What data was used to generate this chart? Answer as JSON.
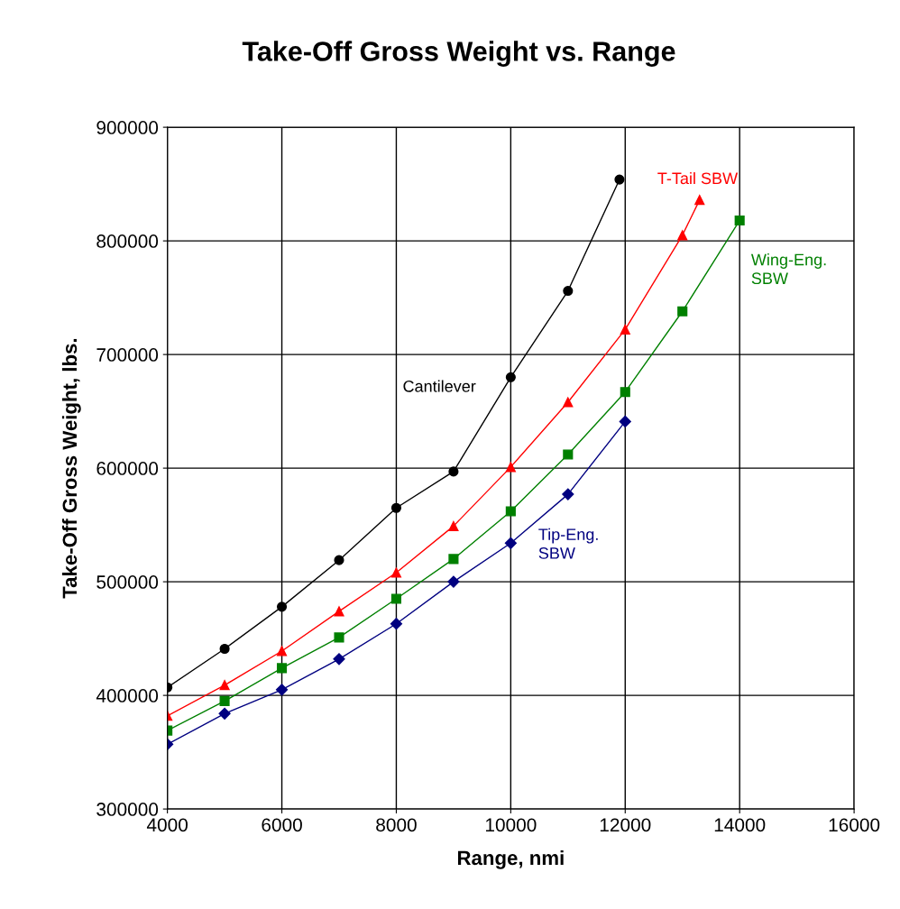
{
  "chart_data": {
    "type": "line",
    "title": "Take-Off Gross Weight vs. Range",
    "xlabel": "Range, nmi",
    "ylabel": "Take-Off Gross Weight, lbs.",
    "xlim": [
      4000,
      16000
    ],
    "xticks": [
      4000,
      6000,
      8000,
      10000,
      12000,
      14000,
      16000
    ],
    "ylim": [
      300000,
      900000
    ],
    "yticks": [
      300000,
      400000,
      500000,
      600000,
      700000,
      800000,
      900000
    ],
    "grid": true,
    "legend": false,
    "line_style": "solid",
    "series": [
      {
        "name": "Cantilever",
        "color": "#000000",
        "marker": "circle",
        "x": [
          4000,
          5000,
          6000,
          7000,
          8000,
          9000,
          10000,
          11000,
          11900
        ],
        "values": [
          407000,
          441000,
          478000,
          519000,
          565000,
          597000,
          680000,
          756000,
          854000
        ]
      },
      {
        "name": "T-Tail SBW",
        "color": "#ff0000",
        "marker": "triangle",
        "x": [
          4000,
          5000,
          6000,
          7000,
          8000,
          9000,
          10000,
          11000,
          12000,
          13000,
          13300
        ],
        "values": [
          382000,
          409000,
          439000,
          474000,
          508000,
          549000,
          601000,
          658000,
          722000,
          805000,
          836000
        ]
      },
      {
        "name": "Wing-Eng.\nSBW",
        "color": "#008000",
        "marker": "square",
        "x": [
          4000,
          5000,
          6000,
          7000,
          8000,
          9000,
          10000,
          11000,
          12000,
          13000,
          14000
        ],
        "values": [
          369000,
          395000,
          424000,
          451000,
          485000,
          520000,
          562000,
          612000,
          667000,
          738000,
          818000
        ]
      },
      {
        "name": "Tip-Eng.\nSBW",
        "color": "#000080",
        "marker": "diamond",
        "x": [
          4000,
          5000,
          6000,
          7000,
          8000,
          9000,
          10000,
          11000,
          12000
        ],
        "values": [
          357000,
          384000,
          405000,
          432000,
          463000,
          500000,
          534000,
          577000,
          641000
        ]
      }
    ]
  }
}
